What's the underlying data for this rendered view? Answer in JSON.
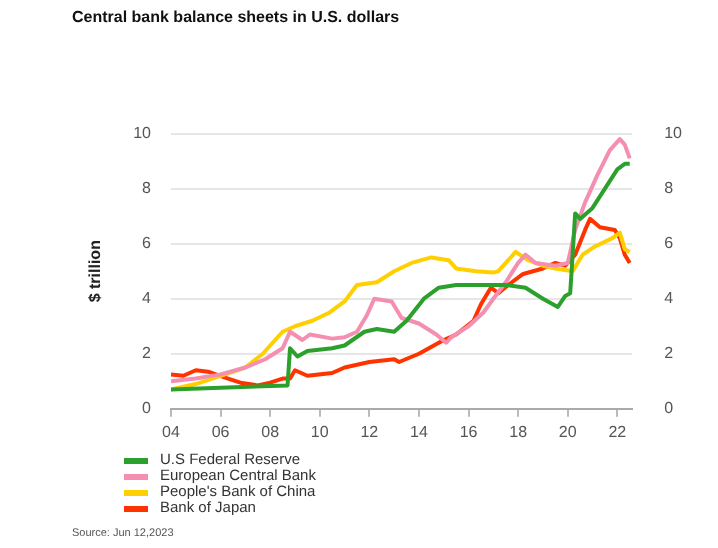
{
  "chart_data": {
    "type": "line",
    "title": "Central bank balance sheets in U.S. dollars",
    "ylabel": "$ trillion",
    "annotations": [
      "Source: Jun 12,2023"
    ],
    "xlim": [
      2004,
      2022.6
    ],
    "xticks": [
      {
        "value": 2004,
        "label": "04"
      },
      {
        "value": 2006,
        "label": "06"
      },
      {
        "value": 2008,
        "label": "08"
      },
      {
        "value": 2010,
        "label": "10"
      },
      {
        "value": 2012,
        "label": "12"
      },
      {
        "value": 2014,
        "label": "14"
      },
      {
        "value": 2016,
        "label": "16"
      },
      {
        "value": 2018,
        "label": "18"
      },
      {
        "value": 2020,
        "label": "20"
      },
      {
        "value": 2022,
        "label": "22"
      }
    ],
    "ylim": [
      0,
      10
    ],
    "yticks": [
      0,
      2,
      4,
      6,
      8,
      10
    ],
    "y2lim": [
      0,
      10
    ],
    "y2ticks": [
      0,
      2,
      4,
      6,
      8,
      10
    ],
    "grid": "y",
    "legend": "bottom left",
    "marker": "none",
    "line_style": "solid",
    "series": [
      {
        "name": "U.S Federal Reserve",
        "color": "#2ca02c",
        "x": [
          2004,
          2008.7,
          2008.8,
          2009.1,
          2009.5,
          2010.5,
          2011,
          2011.8,
          2012.3,
          2013,
          2013.5,
          2014.2,
          2014.8,
          2015.5,
          2017.5,
          2018.3,
          2019,
          2019.6,
          2019.9,
          2020.1,
          2020.3,
          2020.5,
          2021,
          2021.5,
          2022,
          2022.3,
          2022.5
        ],
        "values": [
          0.7,
          0.85,
          2.2,
          1.9,
          2.1,
          2.2,
          2.3,
          2.8,
          2.9,
          2.8,
          3.2,
          4.0,
          4.4,
          4.5,
          4.5,
          4.4,
          4.0,
          3.7,
          4.1,
          4.2,
          7.1,
          6.9,
          7.3,
          8.0,
          8.7,
          8.9,
          8.9
        ]
      },
      {
        "name": "European Central Bank",
        "color": "#f48fb1",
        "x": [
          2004,
          2005,
          2006,
          2007,
          2007.8,
          2008.5,
          2008.8,
          2009.3,
          2009.6,
          2010.5,
          2011,
          2011.5,
          2011.9,
          2012.2,
          2012.9,
          2013.3,
          2014,
          2014.7,
          2015.1,
          2015.3,
          2016,
          2016.6,
          2017,
          2017.5,
          2018,
          2018.3,
          2018.7,
          2019.5,
          2020,
          2020.3,
          2020.7,
          2021.2,
          2021.7,
          2022.1,
          2022.3,
          2022.5
        ],
        "values": [
          1.0,
          1.1,
          1.25,
          1.5,
          1.8,
          2.2,
          2.8,
          2.5,
          2.7,
          2.55,
          2.6,
          2.8,
          3.4,
          4.0,
          3.9,
          3.3,
          3.1,
          2.7,
          2.4,
          2.6,
          3.0,
          3.5,
          4.0,
          4.6,
          5.3,
          5.6,
          5.3,
          5.2,
          5.3,
          6.5,
          7.5,
          8.5,
          9.4,
          9.8,
          9.6,
          9.1
        ]
      },
      {
        "name": "People's Bank of China",
        "color": "#ffd000",
        "x": [
          2004,
          2005,
          2006,
          2007,
          2007.7,
          2008.5,
          2009,
          2009.7,
          2010.4,
          2011,
          2011.5,
          2012.3,
          2013,
          2013.7,
          2014.5,
          2015.2,
          2015.5,
          2016.3,
          2017,
          2017.2,
          2017.9,
          2018.4,
          2019,
          2019.5,
          2020.2,
          2020.6,
          2021.1,
          2021.8,
          2022.1,
          2022.3,
          2022.5
        ],
        "values": [
          0.7,
          0.9,
          1.2,
          1.5,
          2.0,
          2.8,
          3.0,
          3.2,
          3.5,
          3.9,
          4.5,
          4.6,
          5.0,
          5.3,
          5.5,
          5.4,
          5.1,
          5.0,
          4.95,
          5.0,
          5.7,
          5.4,
          5.2,
          5.1,
          5.0,
          5.6,
          5.9,
          6.2,
          6.4,
          5.8,
          5.7
        ]
      },
      {
        "name": "Bank of Japan",
        "color": "#ff3300",
        "x": [
          2004,
          2004.5,
          2005,
          2005.5,
          2006.3,
          2006.8,
          2007.5,
          2008,
          2008.5,
          2008.8,
          2009,
          2009.5,
          2010.5,
          2011,
          2012,
          2013,
          2013.2,
          2014,
          2015,
          2015.5,
          2016.2,
          2016.5,
          2016.9,
          2017.2,
          2017.6,
          2018.2,
          2019,
          2019.5,
          2019.9,
          2020.3,
          2020.7,
          2020.9,
          2021.3,
          2021.9,
          2022.1,
          2022.3,
          2022.5
        ],
        "values": [
          1.25,
          1.2,
          1.4,
          1.35,
          1.1,
          0.95,
          0.85,
          0.95,
          1.1,
          1.1,
          1.4,
          1.2,
          1.3,
          1.5,
          1.7,
          1.8,
          1.7,
          2.0,
          2.5,
          2.7,
          3.2,
          3.8,
          4.4,
          4.2,
          4.5,
          4.9,
          5.1,
          5.3,
          5.2,
          5.6,
          6.5,
          6.9,
          6.6,
          6.5,
          6.2,
          5.6,
          5.3
        ]
      }
    ]
  }
}
